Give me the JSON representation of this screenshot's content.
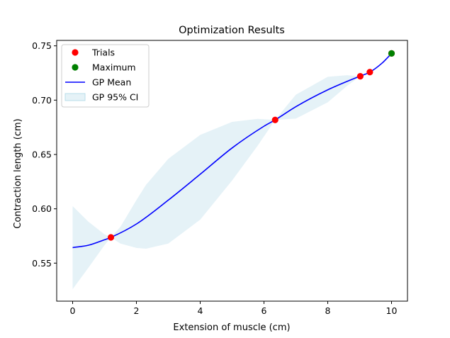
{
  "chart_data": {
    "type": "line",
    "title": "Optimization Results",
    "xlabel": "Extension of muscle (cm)",
    "ylabel": "Contraction length (cm)",
    "xlim": [
      -0.5,
      10.5
    ],
    "ylim": [
      0.515,
      0.755
    ],
    "xticks": [
      0,
      2,
      4,
      6,
      8,
      10
    ],
    "yticks": [
      0.55,
      0.6,
      0.65,
      0.7,
      0.75
    ],
    "grid": false,
    "legend_position": "top-left",
    "series": [
      {
        "name": "Trials",
        "kind": "scatter",
        "color": "#ff0000",
        "points": [
          {
            "x": 1.2,
            "y": 0.5737
          },
          {
            "x": 6.35,
            "y": 0.6818
          },
          {
            "x": 9.02,
            "y": 0.722
          },
          {
            "x": 9.32,
            "y": 0.7258
          },
          {
            "x": 10.0,
            "y": 0.743
          }
        ]
      },
      {
        "name": "Maximum",
        "kind": "scatter",
        "color": "#008000",
        "points": [
          {
            "x": 10.0,
            "y": 0.743
          }
        ]
      },
      {
        "name": "GP Mean",
        "kind": "line",
        "color": "#0000ff",
        "points": [
          {
            "x": 0.0,
            "y": 0.5643
          },
          {
            "x": 0.5,
            "y": 0.5665
          },
          {
            "x": 1.0,
            "y": 0.5715
          },
          {
            "x": 1.2,
            "y": 0.5737
          },
          {
            "x": 2.0,
            "y": 0.586
          },
          {
            "x": 3.0,
            "y": 0.608
          },
          {
            "x": 4.0,
            "y": 0.6318
          },
          {
            "x": 5.0,
            "y": 0.656
          },
          {
            "x": 6.0,
            "y": 0.676
          },
          {
            "x": 6.35,
            "y": 0.6818
          },
          {
            "x": 7.0,
            "y": 0.694
          },
          {
            "x": 8.0,
            "y": 0.7095
          },
          {
            "x": 9.0,
            "y": 0.722
          },
          {
            "x": 9.32,
            "y": 0.7258
          },
          {
            "x": 9.7,
            "y": 0.734
          },
          {
            "x": 10.0,
            "y": 0.743
          }
        ]
      },
      {
        "name": "GP 95% CI",
        "kind": "band",
        "color": "#add8e6",
        "points": [
          {
            "x": 0.0,
            "lower": 0.526,
            "upper": 0.6025
          },
          {
            "x": 0.5,
            "lower": 0.546,
            "upper": 0.588
          },
          {
            "x": 1.0,
            "lower": 0.5665,
            "upper": 0.5765
          },
          {
            "x": 1.2,
            "lower": 0.5737,
            "upper": 0.5737
          },
          {
            "x": 1.5,
            "lower": 0.568,
            "upper": 0.5835
          },
          {
            "x": 2.0,
            "lower": 0.564,
            "upper": 0.608
          },
          {
            "x": 2.3,
            "lower": 0.5633,
            "upper": 0.622
          },
          {
            "x": 3.0,
            "lower": 0.568,
            "upper": 0.646
          },
          {
            "x": 4.0,
            "lower": 0.59,
            "upper": 0.668
          },
          {
            "x": 5.0,
            "lower": 0.626,
            "upper": 0.68
          },
          {
            "x": 5.8,
            "lower": 0.658,
            "upper": 0.6828
          },
          {
            "x": 6.35,
            "lower": 0.6818,
            "upper": 0.6818
          },
          {
            "x": 7.0,
            "lower": 0.683,
            "upper": 0.705
          },
          {
            "x": 8.0,
            "lower": 0.698,
            "upper": 0.7215
          },
          {
            "x": 8.6,
            "lower": 0.713,
            "upper": 0.723
          },
          {
            "x": 9.02,
            "lower": 0.722,
            "upper": 0.722
          },
          {
            "x": 9.32,
            "lower": 0.7258,
            "upper": 0.7258
          },
          {
            "x": 9.7,
            "lower": 0.7335,
            "upper": 0.7345
          },
          {
            "x": 10.0,
            "lower": 0.743,
            "upper": 0.743
          }
        ]
      }
    ]
  }
}
